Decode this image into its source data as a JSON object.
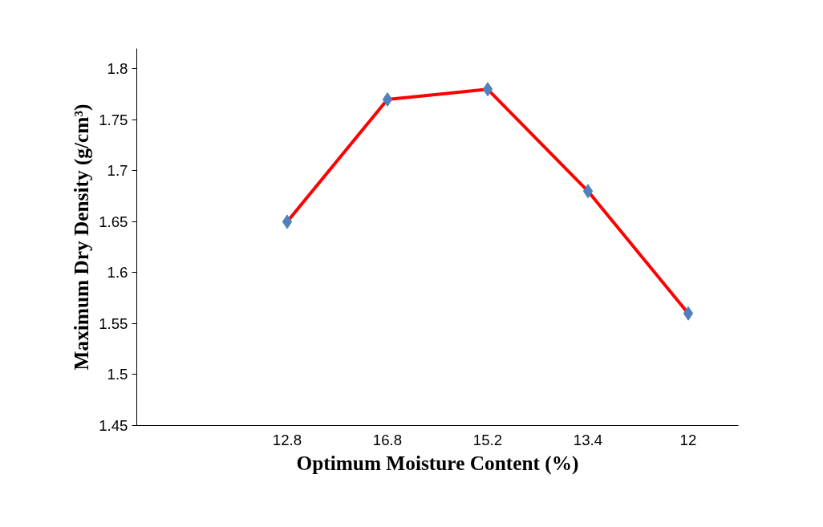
{
  "chart_data": {
    "type": "line",
    "xlabel": "Optimum Moisture Content (%)",
    "ylabel": "Maximum Dry Density (g/cm³)",
    "categories": [
      null,
      "12.8",
      "16.8",
      "15.2",
      "13.4",
      "12"
    ],
    "series": [
      {
        "color": "#ff0000",
        "values": [
          null,
          1.65,
          1.77,
          1.78,
          1.68,
          1.56
        ]
      }
    ],
    "ylim": [
      1.45,
      1.82
    ],
    "yticks": [
      1.45,
      1.5,
      1.55,
      1.6,
      1.65,
      1.7,
      1.75,
      1.8
    ],
    "marker": "diamond",
    "line_style": "solid",
    "grid": false
  }
}
